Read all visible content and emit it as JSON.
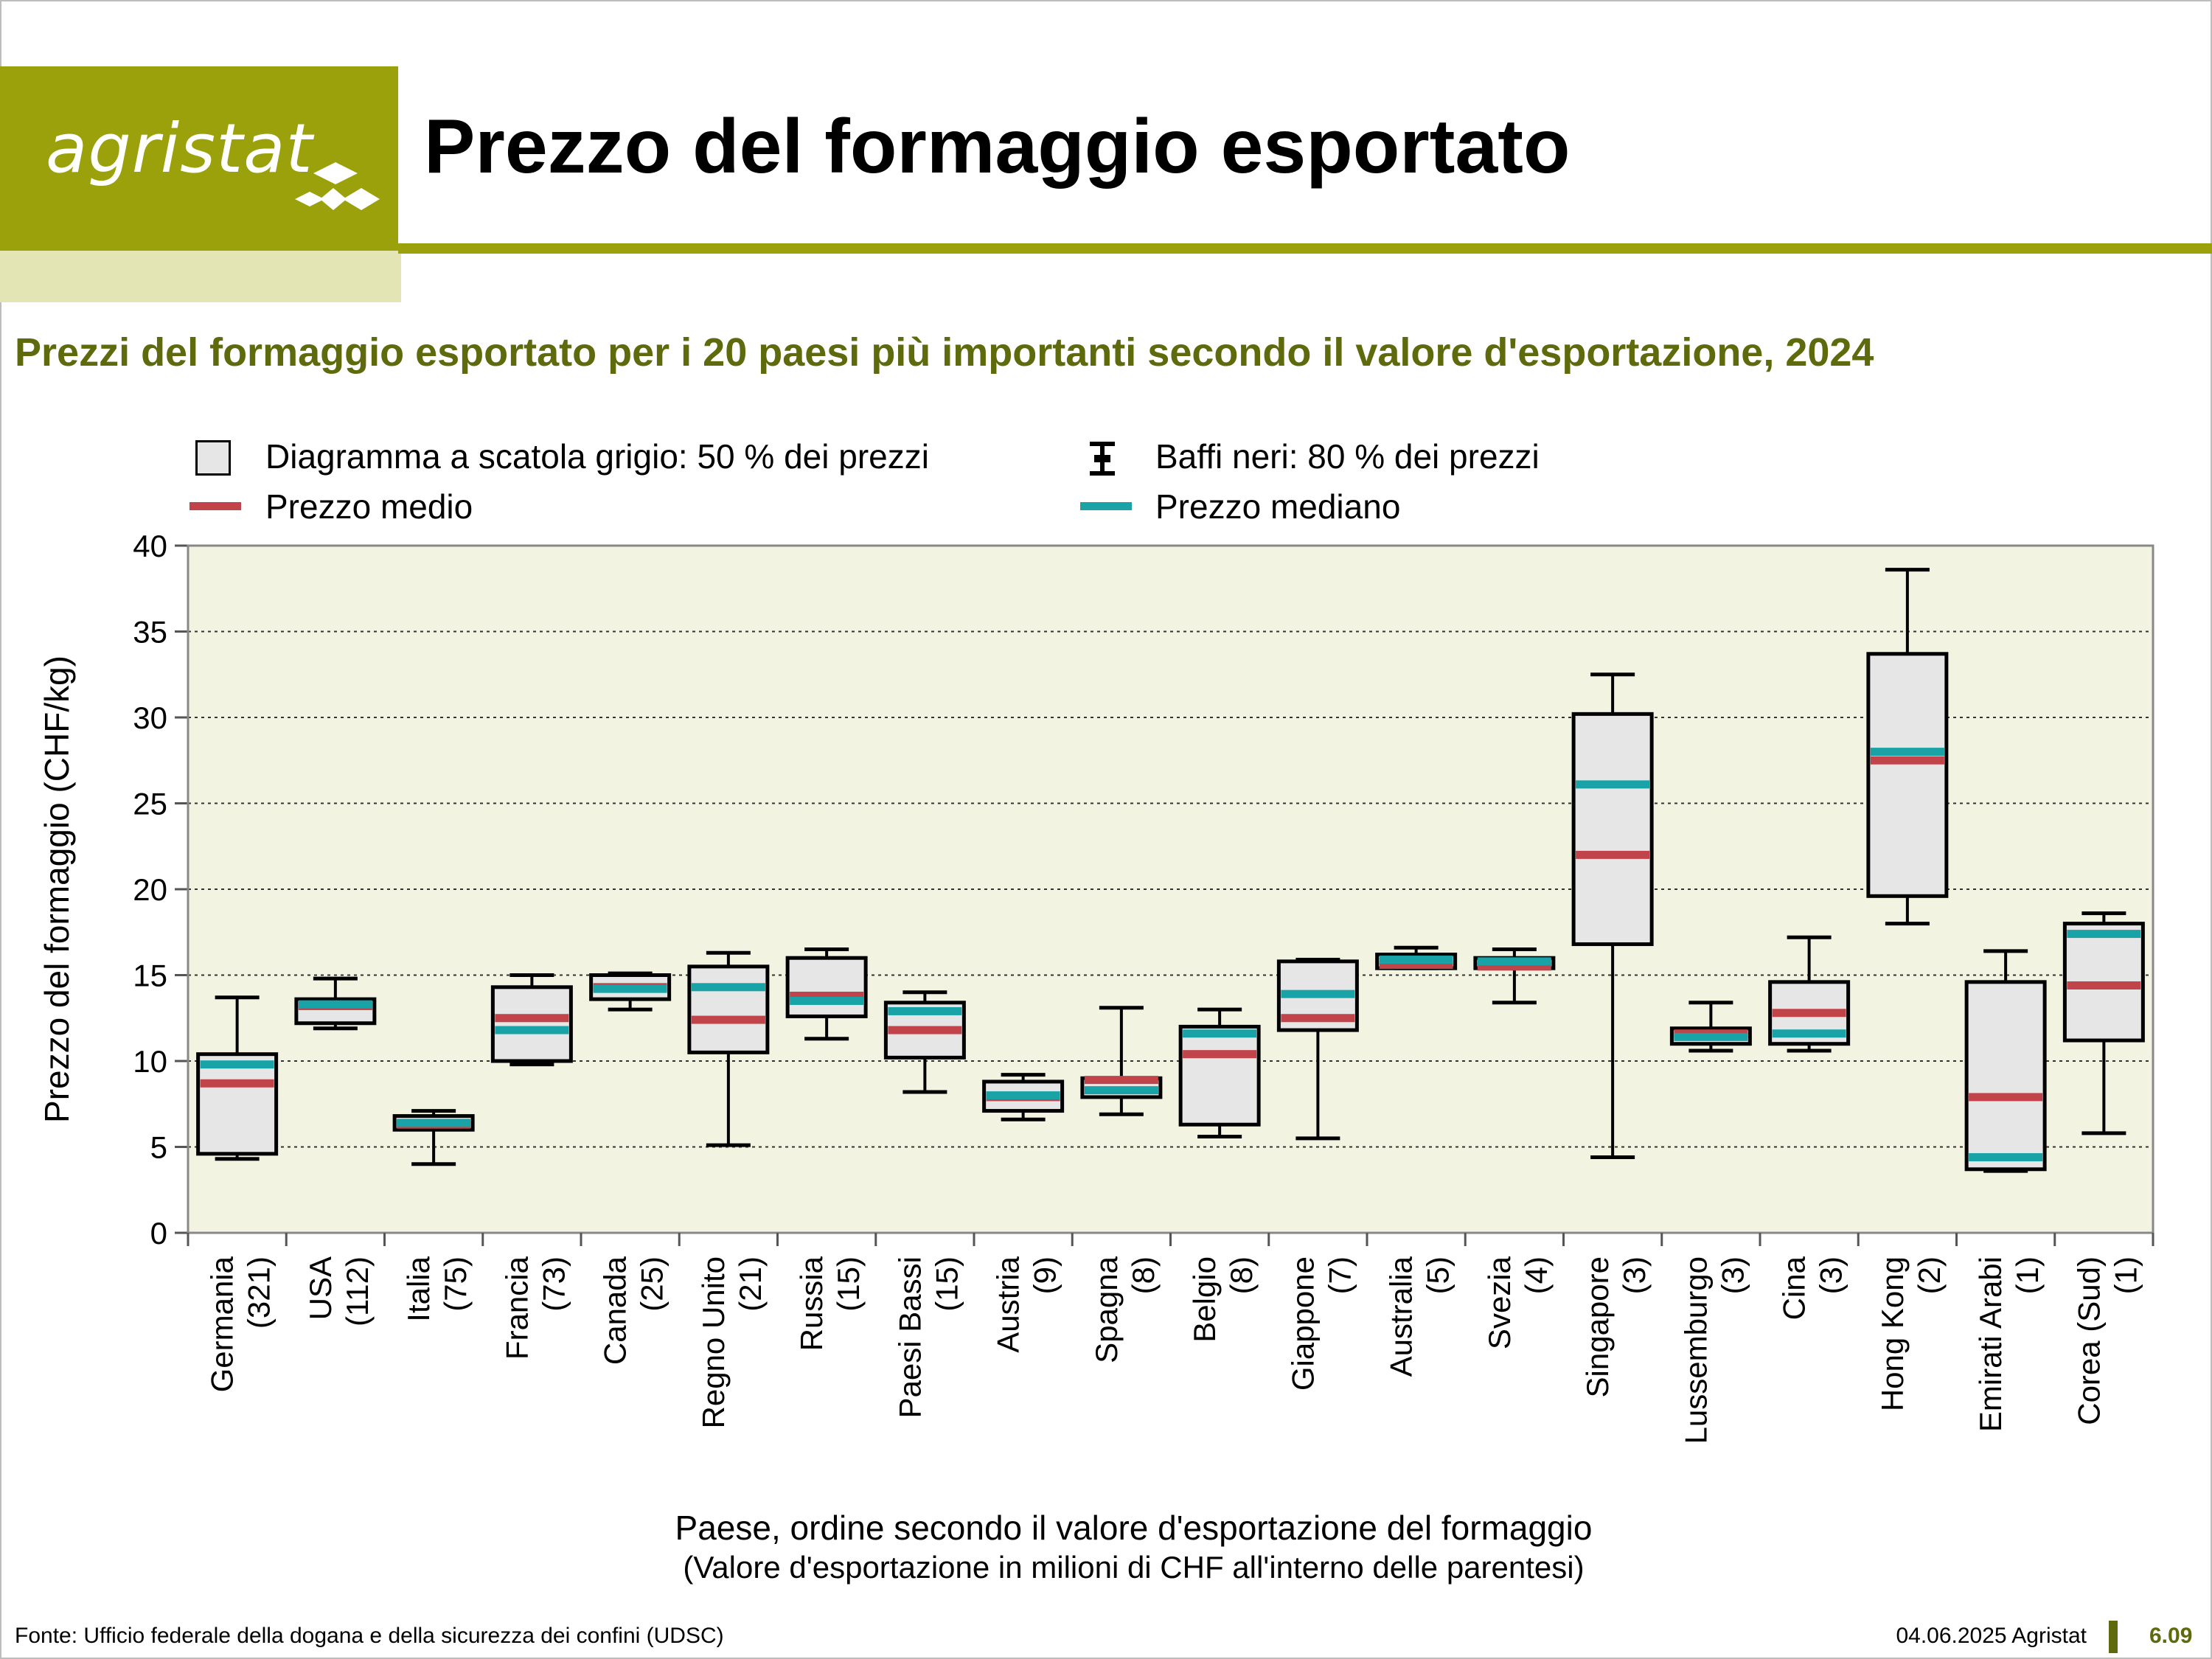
{
  "header": {
    "logo_text": "agristat",
    "title": "Prezzo del formaggio esportato"
  },
  "subtitle": "Prezzi del formaggio esportato per i 20 paesi più importanti secondo il valore d'esportazione, 2024",
  "legend": {
    "box_label": "Diagramma a scatola grigio: 50 % dei prezzi",
    "whisker_label": "Baffi neri: 80 % dei prezzi",
    "mean_label": "Prezzo medio",
    "median_label": "Prezzo mediano"
  },
  "colors": {
    "brand": "#9aa10a",
    "brand_light": "#e3e5b4",
    "subtitle": "#5e6a0b",
    "plot_bg": "#f3f3e2",
    "box_fill": "#e6e6e6",
    "mean": "#c0444a",
    "median": "#1aa3a6"
  },
  "chart_data": {
    "type": "boxplot",
    "ylabel": "Prezzo del formaggio (CHF/kg)",
    "xlabel": "Paese, ordine secondo il valore d'esportazione del formaggio",
    "xlabel_note": "(Valore d'esportazione in milioni di CHF all'interno delle parentesi)",
    "ylim": [
      0,
      40
    ],
    "yticks": [
      0,
      5,
      10,
      15,
      20,
      25,
      30,
      35,
      40
    ],
    "grid": "horizontal dotted",
    "categories": [
      {
        "name": "Germania",
        "value_label": "(321)",
        "whisker_low": 4.3,
        "q1": 4.6,
        "q3": 10.4,
        "whisker_high": 13.7,
        "mean": 8.7,
        "median": 9.8
      },
      {
        "name": "USA",
        "value_label": "(112)",
        "whisker_low": 11.9,
        "q1": 12.2,
        "q3": 13.6,
        "whisker_high": 14.8,
        "mean": 13.2,
        "median": 13.3
      },
      {
        "name": "Italia",
        "value_label": "(75)",
        "whisker_low": 4.0,
        "q1": 6.0,
        "q3": 6.8,
        "whisker_high": 7.1,
        "mean": 6.3,
        "median": 6.4
      },
      {
        "name": "Francia",
        "value_label": "(73)",
        "whisker_low": 9.8,
        "q1": 10.0,
        "q3": 14.3,
        "whisker_high": 15.0,
        "mean": 12.5,
        "median": 11.8
      },
      {
        "name": "Canada",
        "value_label": "(25)",
        "whisker_low": 13.0,
        "q1": 13.6,
        "q3": 15.0,
        "whisker_high": 15.1,
        "mean": 14.3,
        "median": 14.2
      },
      {
        "name": "Regno Unito",
        "value_label": "(21)",
        "whisker_low": 5.1,
        "q1": 10.5,
        "q3": 15.5,
        "whisker_high": 16.3,
        "mean": 12.4,
        "median": 14.3
      },
      {
        "name": "Russia",
        "value_label": "(15)",
        "whisker_low": 11.3,
        "q1": 12.6,
        "q3": 16.0,
        "whisker_high": 16.5,
        "mean": 13.8,
        "median": 13.5
      },
      {
        "name": "Paesi Bassi",
        "value_label": "(15)",
        "whisker_low": 8.2,
        "q1": 10.2,
        "q3": 13.4,
        "whisker_high": 14.0,
        "mean": 11.8,
        "median": 12.9
      },
      {
        "name": "Austria",
        "value_label": "(9)",
        "whisker_low": 6.6,
        "q1": 7.1,
        "q3": 8.8,
        "whisker_high": 9.2,
        "mean": 7.9,
        "median": 8.0
      },
      {
        "name": "Spagna",
        "value_label": "(8)",
        "whisker_low": 6.9,
        "q1": 7.9,
        "q3": 9.0,
        "whisker_high": 13.1,
        "mean": 8.9,
        "median": 8.3
      },
      {
        "name": "Belgio",
        "value_label": "(8)",
        "whisker_low": 5.6,
        "q1": 6.3,
        "q3": 12.0,
        "whisker_high": 13.0,
        "mean": 10.4,
        "median": 11.6
      },
      {
        "name": "Giappone",
        "value_label": "(7)",
        "whisker_low": 5.5,
        "q1": 11.8,
        "q3": 15.8,
        "whisker_high": 15.9,
        "mean": 12.5,
        "median": 13.9
      },
      {
        "name": "Australia",
        "value_label": "(5)",
        "whisker_low": 15.4,
        "q1": 15.4,
        "q3": 16.2,
        "whisker_high": 16.6,
        "mean": 15.6,
        "median": 15.9
      },
      {
        "name": "Svezia",
        "value_label": "(4)",
        "whisker_low": 13.4,
        "q1": 15.4,
        "q3": 16.0,
        "whisker_high": 16.5,
        "mean": 15.5,
        "median": 15.8
      },
      {
        "name": "Singapore",
        "value_label": "(3)",
        "whisker_low": 4.4,
        "q1": 16.8,
        "q3": 30.2,
        "whisker_high": 32.5,
        "mean": 22.0,
        "median": 26.1
      },
      {
        "name": "Lussemburgo",
        "value_label": "(3)",
        "whisker_low": 10.6,
        "q1": 11.0,
        "q3": 11.9,
        "whisker_high": 13.4,
        "mean": 11.6,
        "median": 11.4
      },
      {
        "name": "Cina",
        "value_label": "(3)",
        "whisker_low": 10.6,
        "q1": 11.0,
        "q3": 14.6,
        "whisker_high": 17.2,
        "mean": 12.8,
        "median": 11.6
      },
      {
        "name": "Hong Kong",
        "value_label": "(2)",
        "whisker_low": 18.0,
        "q1": 19.6,
        "q3": 33.7,
        "whisker_high": 38.6,
        "mean": 27.5,
        "median": 28.0
      },
      {
        "name": "Emirati Arabi",
        "value_label": "(1)",
        "whisker_low": 3.6,
        "q1": 3.7,
        "q3": 14.6,
        "whisker_high": 16.4,
        "mean": 7.9,
        "median": 4.4
      },
      {
        "name": "Corea (Sud)",
        "value_label": "(1)",
        "whisker_low": 5.8,
        "q1": 11.2,
        "q3": 18.0,
        "whisker_high": 18.6,
        "mean": 14.4,
        "median": 17.4
      }
    ]
  },
  "footer": {
    "source": "Fonte: Ufficio federale della dogana e della sicurezza dei confini (UDSC)",
    "date": "04.06.2025 Agristat",
    "page": "6.09"
  }
}
